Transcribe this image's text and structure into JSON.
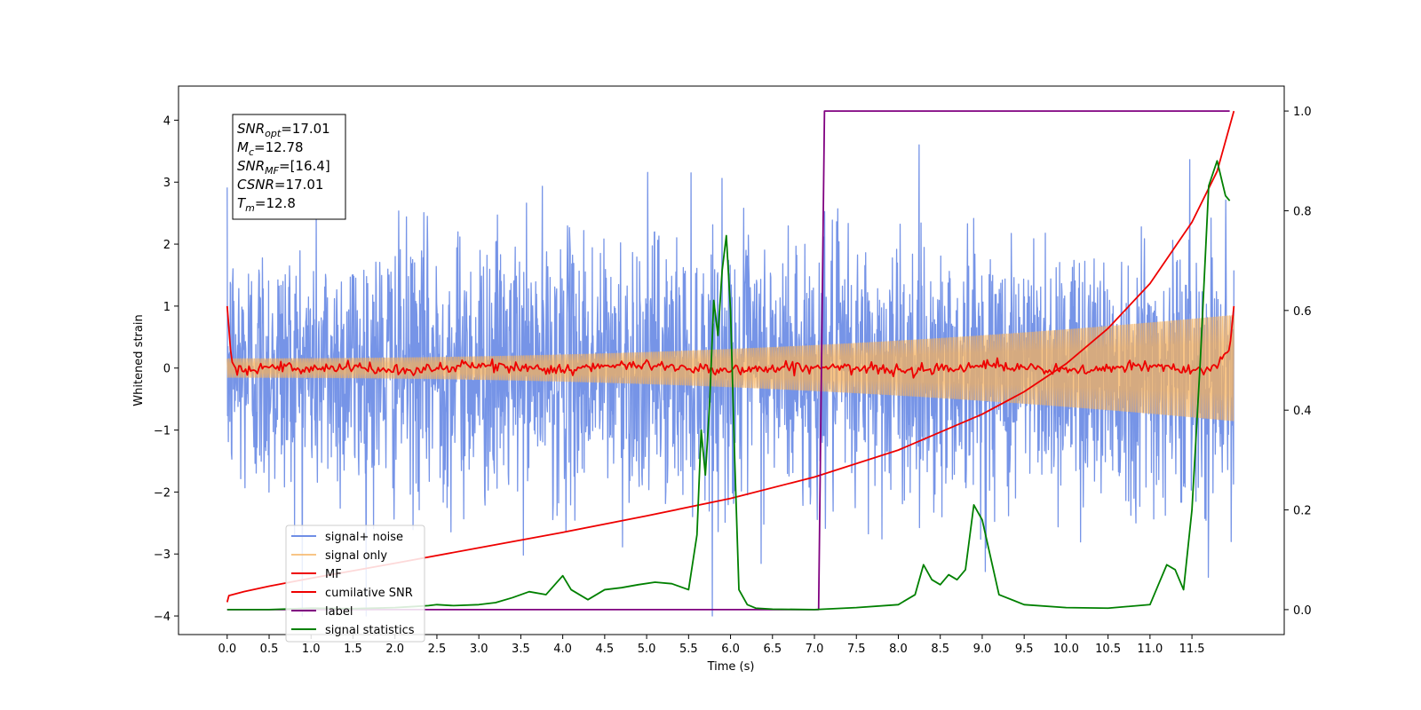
{
  "chart_data": {
    "type": "line",
    "xlabel": "Time (s)",
    "ylabel": "Whitened strain",
    "xlim": [
      -0.58,
      12.6
    ],
    "ylim": [
      -4.3,
      4.55
    ],
    "y2lim": [
      -0.05,
      1.05
    ],
    "x_ticks": [
      "0.0",
      "0.5",
      "1.0",
      "1.5",
      "2.0",
      "2.5",
      "3.0",
      "3.5",
      "4.0",
      "4.5",
      "5.0",
      "5.5",
      "6.0",
      "6.5",
      "7.0",
      "7.5",
      "8.0",
      "8.5",
      "9.0",
      "9.5",
      "10.0",
      "10.5",
      "11.0",
      "11.5"
    ],
    "y_ticks": [
      "4",
      "3",
      "2",
      "1",
      "0",
      "−1",
      "−2",
      "−3",
      "−4"
    ],
    "y2_ticks": [
      "1.0",
      "0.8",
      "0.6",
      "0.4",
      "0.2",
      "0.0"
    ],
    "annotation": [
      {
        "name": "SNR",
        "sub": "opt",
        "value": "=17.01"
      },
      {
        "name": "M",
        "sub": "c",
        "value": "=12.78"
      },
      {
        "name": "SNR",
        "sub": "MF",
        "value": "=[16.4]"
      },
      {
        "name": "CSNR",
        "sub": "",
        "value": "=17.01"
      },
      {
        "name": "T",
        "sub": "m",
        "value": "=12.8"
      }
    ],
    "legend_position": "lower-left",
    "series": [
      {
        "name": "signal+ noise",
        "color": "#6f8ee6",
        "axis": "left",
        "noise_sd": 1.05,
        "x_range": [
          0,
          12
        ]
      },
      {
        "name": "signal only",
        "color": "#f5b25d",
        "axis": "left",
        "amplitude_start": 0.15,
        "amplitude_end": 0.85,
        "x_range": [
          0,
          12
        ]
      },
      {
        "name": "MF",
        "color": "#ee0000",
        "axis": "left",
        "x": [
          0.0,
          0.05,
          0.1,
          0.3,
          0.5,
          1.0,
          1.5,
          2.0,
          3.0,
          4.0,
          5.0,
          6.0,
          7.0,
          8.0,
          9.0,
          10.0,
          11.0,
          11.5,
          11.8,
          11.95,
          12.0
        ],
        "y": [
          1.0,
          0.12,
          0.0,
          -0.02,
          0.03,
          -0.04,
          0.02,
          -0.05,
          0.04,
          -0.02,
          0.05,
          -0.03,
          0.02,
          -0.04,
          0.05,
          -0.05,
          0.03,
          -0.02,
          0.05,
          0.3,
          1.0
        ]
      },
      {
        "name": "cumilative SNR",
        "color": "#ee0000",
        "axis": "right",
        "x": [
          0.0,
          0.02,
          0.2,
          0.5,
          1.0,
          1.5,
          2.0,
          3.0,
          4.0,
          5.0,
          6.0,
          7.0,
          8.0,
          9.0,
          9.5,
          10.0,
          10.5,
          11.0,
          11.5,
          11.8,
          12.0
        ],
        "y": [
          0.015,
          0.028,
          0.036,
          0.047,
          0.063,
          0.078,
          0.093,
          0.124,
          0.155,
          0.188,
          0.223,
          0.266,
          0.32,
          0.392,
          0.437,
          0.493,
          0.564,
          0.654,
          0.777,
          0.879,
          1.0
        ]
      },
      {
        "name": "label",
        "color": "#800080",
        "axis": "right",
        "x": [
          0.0,
          7.05,
          7.12,
          11.95
        ],
        "y": [
          0.0,
          0.0,
          1.0,
          1.0
        ]
      },
      {
        "name": "signal statistics",
        "color": "#008000",
        "axis": "right",
        "x": [
          0.0,
          0.5,
          1.0,
          1.5,
          2.0,
          2.2,
          2.4,
          2.5,
          2.7,
          3.0,
          3.2,
          3.4,
          3.6,
          3.8,
          4.0,
          4.1,
          4.3,
          4.5,
          4.7,
          4.9,
          5.1,
          5.3,
          5.5,
          5.6,
          5.65,
          5.7,
          5.75,
          5.8,
          5.85,
          5.9,
          5.95,
          6.0,
          6.05,
          6.1,
          6.2,
          6.3,
          6.5,
          7.0,
          7.5,
          8.0,
          8.2,
          8.3,
          8.4,
          8.5,
          8.6,
          8.7,
          8.8,
          8.9,
          9.0,
          9.2,
          9.5,
          10.0,
          10.5,
          11.0,
          11.1,
          11.2,
          11.3,
          11.4,
          11.5,
          11.6,
          11.7,
          11.8,
          11.9,
          11.95
        ],
        "y": [
          0.0,
          0.0,
          0.003,
          0.002,
          0.004,
          0.006,
          0.008,
          0.01,
          0.008,
          0.01,
          0.014,
          0.024,
          0.036,
          0.03,
          0.068,
          0.04,
          0.02,
          0.04,
          0.044,
          0.05,
          0.055,
          0.052,
          0.04,
          0.15,
          0.36,
          0.27,
          0.41,
          0.62,
          0.55,
          0.68,
          0.75,
          0.6,
          0.3,
          0.04,
          0.01,
          0.003,
          0.001,
          0.0,
          0.004,
          0.01,
          0.03,
          0.09,
          0.06,
          0.05,
          0.07,
          0.06,
          0.08,
          0.21,
          0.18,
          0.03,
          0.01,
          0.004,
          0.003,
          0.01,
          0.05,
          0.09,
          0.08,
          0.04,
          0.2,
          0.5,
          0.85,
          0.9,
          0.83,
          0.82
        ]
      }
    ]
  }
}
